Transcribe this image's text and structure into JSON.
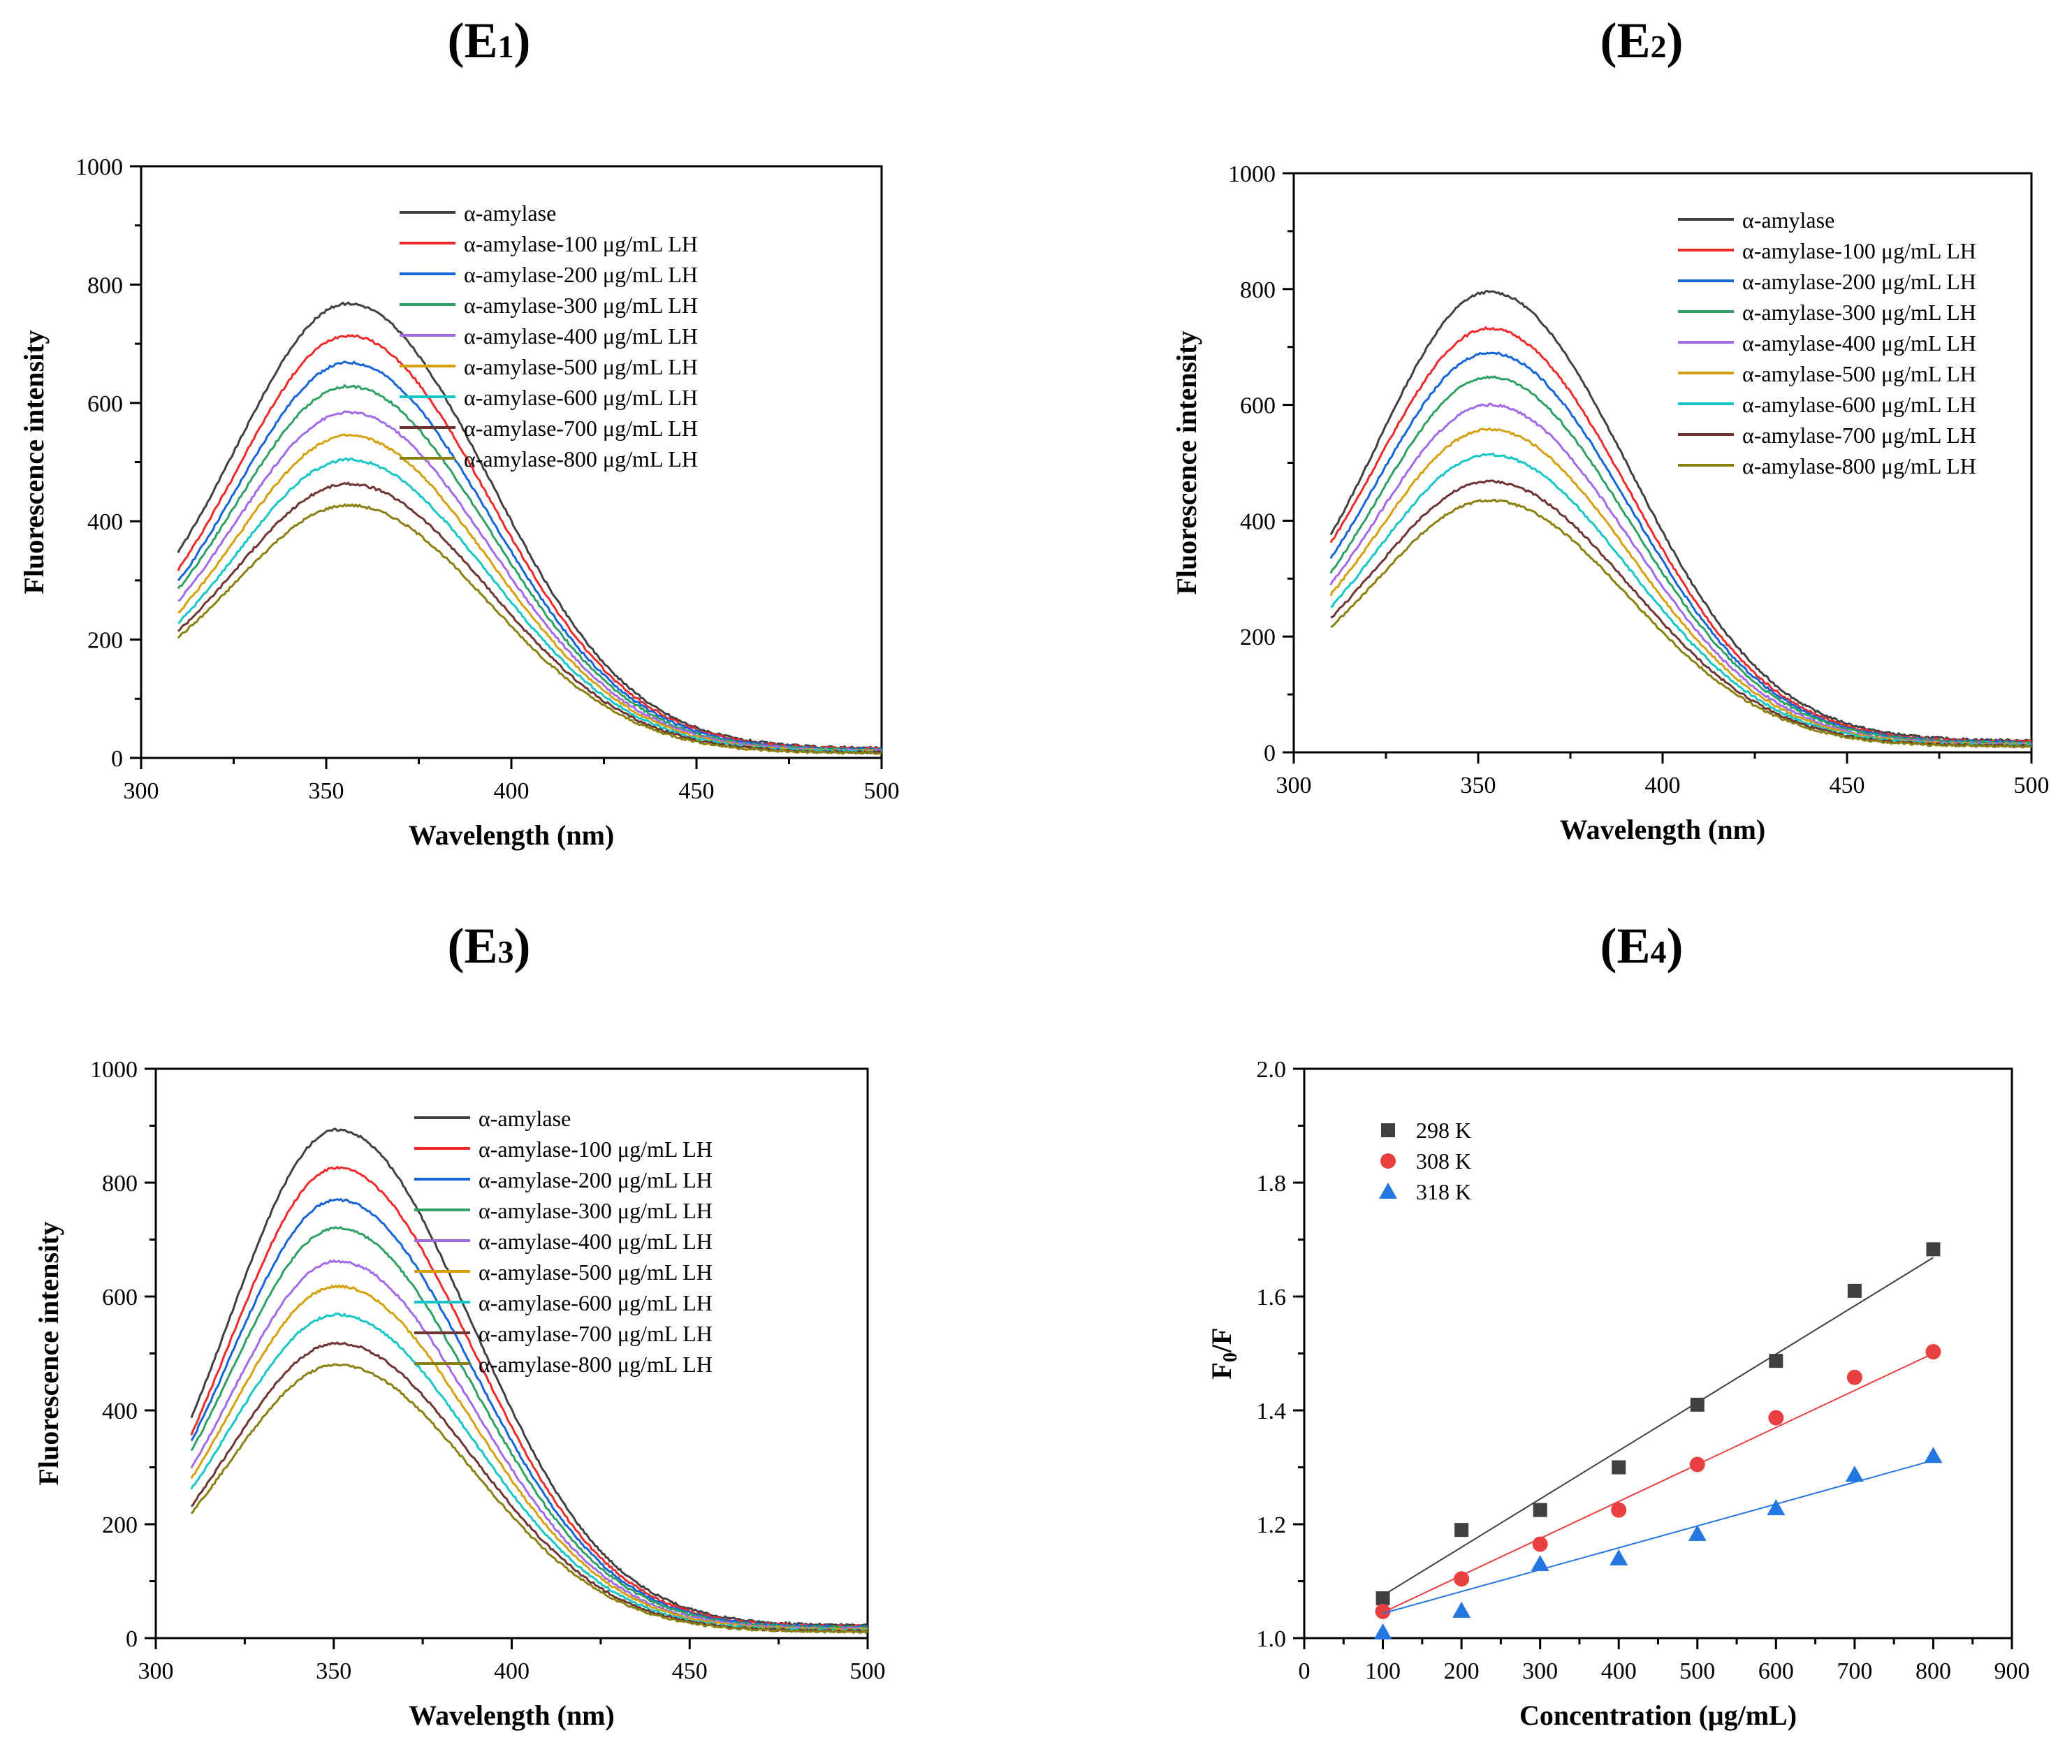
{
  "colors": {
    "series": [
      "#404040",
      "#ee2a2a",
      "#1565d8",
      "#2ea063",
      "#a26ae6",
      "#d4a00c",
      "#16c6c6",
      "#6e3434",
      "#8a8010"
    ],
    "scatter": [
      "#404040",
      "#e84040",
      "#2477e0"
    ]
  },
  "chart_data": [
    {
      "id": "E1",
      "title_main": "(E",
      "title_sub": "1",
      "title_end": ")",
      "type": "line",
      "xlabel": "Wavelength (nm)",
      "ylabel": "Fluorescence intensity",
      "xlim": [
        300,
        500
      ],
      "ylim": [
        0,
        1000
      ],
      "xticks": [
        300,
        350,
        400,
        450,
        500
      ],
      "yticks": [
        0,
        200,
        400,
        600,
        800,
        1000
      ],
      "peak_x": 356,
      "x_start": 310,
      "series": [
        {
          "name": "α-amylase",
          "peak": 768,
          "start": 348,
          "end": 16
        },
        {
          "name": "α-amylase-100 μg/mL LH",
          "peak": 714,
          "start": 318,
          "end": 15
        },
        {
          "name": "α-amylase-200 μg/mL LH",
          "peak": 668,
          "start": 298,
          "end": 14
        },
        {
          "name": "α-amylase-300 μg/mL LH",
          "peak": 628,
          "start": 285,
          "end": 13
        },
        {
          "name": "α-amylase-400 μg/mL LH",
          "peak": 584,
          "start": 265,
          "end": 12
        },
        {
          "name": "α-amylase-500 μg/mL LH",
          "peak": 545,
          "start": 245,
          "end": 11
        },
        {
          "name": "α-amylase-600 μg/mL LH",
          "peak": 504,
          "start": 228,
          "end": 10
        },
        {
          "name": "α-amylase-700 μg/mL LH",
          "peak": 463,
          "start": 215,
          "end": 9
        },
        {
          "name": "α-amylase-800 μg/mL LH",
          "peak": 427,
          "start": 204,
          "end": 8
        }
      ]
    },
    {
      "id": "E2",
      "title_main": "(E",
      "title_sub": "2",
      "title_end": ")",
      "type": "line",
      "xlabel": "Wavelength (nm)",
      "ylabel": "Fluorescence intensity",
      "xlim": [
        300,
        500
      ],
      "ylim": [
        0,
        1000
      ],
      "xticks": [
        300,
        350,
        400,
        450,
        500
      ],
      "yticks": [
        0,
        200,
        400,
        600,
        800,
        1000
      ],
      "peak_x": 353,
      "x_start": 310,
      "series": [
        {
          "name": "α-amylase",
          "peak": 795,
          "start": 375,
          "end": 20
        },
        {
          "name": "α-amylase-100 μg/mL LH",
          "peak": 732,
          "start": 362,
          "end": 18
        },
        {
          "name": "α-amylase-200 μg/mL LH",
          "peak": 690,
          "start": 335,
          "end": 17
        },
        {
          "name": "α-amylase-300 μg/mL LH",
          "peak": 648,
          "start": 310,
          "end": 16
        },
        {
          "name": "α-amylase-400 μg/mL LH",
          "peak": 600,
          "start": 290,
          "end": 14
        },
        {
          "name": "α-amylase-500 μg/mL LH",
          "peak": 558,
          "start": 272,
          "end": 13
        },
        {
          "name": "α-amylase-600 μg/mL LH",
          "peak": 514,
          "start": 250,
          "end": 12
        },
        {
          "name": "α-amylase-700 μg/mL LH",
          "peak": 468,
          "start": 232,
          "end": 11
        },
        {
          "name": "α-amylase-800 μg/mL LH",
          "peak": 435,
          "start": 216,
          "end": 10
        }
      ]
    },
    {
      "id": "E3",
      "title_main": "(E",
      "title_sub": "3",
      "title_end": ")",
      "type": "line",
      "xlabel": "Wavelength (nm)",
      "ylabel": "Fluorescence intensity",
      "xlim": [
        300,
        500
      ],
      "ylim": [
        0,
        1000
      ],
      "xticks": [
        300,
        350,
        400,
        450,
        500
      ],
      "yticks": [
        0,
        200,
        400,
        600,
        800,
        1000
      ],
      "peak_x": 351,
      "x_start": 310,
      "series": [
        {
          "name": "α-amylase",
          "peak": 893,
          "start": 388,
          "end": 22
        },
        {
          "name": "α-amylase-100 μg/mL LH",
          "peak": 826,
          "start": 358,
          "end": 20
        },
        {
          "name": "α-amylase-200 μg/mL LH",
          "peak": 770,
          "start": 345,
          "end": 19
        },
        {
          "name": "α-amylase-300 μg/mL LH",
          "peak": 720,
          "start": 328,
          "end": 18
        },
        {
          "name": "α-amylase-400 μg/mL LH",
          "peak": 662,
          "start": 298,
          "end": 16
        },
        {
          "name": "α-amylase-500 μg/mL LH",
          "peak": 618,
          "start": 280,
          "end": 15
        },
        {
          "name": "α-amylase-600 μg/mL LH",
          "peak": 568,
          "start": 262,
          "end": 13
        },
        {
          "name": "α-amylase-700 μg/mL LH",
          "peak": 518,
          "start": 232,
          "end": 12
        },
        {
          "name": "α-amylase-800 μg/mL LH",
          "peak": 480,
          "start": 220,
          "end": 11
        }
      ]
    },
    {
      "id": "E4",
      "title_main": "(E",
      "title_sub": "4",
      "title_end": ")",
      "type": "scatter",
      "xlabel": "Concentration (μg/mL)",
      "ylabel_main": "F",
      "ylabel_sub": "0",
      "ylabel_end": "/F",
      "xlim": [
        0,
        900
      ],
      "ylim": [
        1.0,
        2.0
      ],
      "xticks": [
        0,
        100,
        200,
        300,
        400,
        500,
        600,
        700,
        800,
        900
      ],
      "yticks": [
        1.0,
        1.2,
        1.4,
        1.6,
        1.8,
        2.0
      ],
      "ytick_labels": [
        "1.0",
        "1.2",
        "1.4",
        "1.6",
        "1.8",
        "2.0"
      ],
      "x": [
        100,
        200,
        300,
        400,
        500,
        600,
        700,
        800
      ],
      "series": [
        {
          "name": "298 K",
          "marker": "square",
          "values": [
            1.07,
            1.19,
            1.225,
            1.3,
            1.41,
            1.487,
            1.61,
            1.683
          ],
          "fit": [
            0.99,
            0.000848
          ]
        },
        {
          "name": "308 K",
          "marker": "circle",
          "values": [
            1.047,
            1.104,
            1.165,
            1.225,
            1.305,
            1.387,
            1.458,
            1.503
          ],
          "fit": [
            0.98,
            0.00065
          ]
        },
        {
          "name": "318 K",
          "marker": "triangle",
          "values": [
            1.01,
            1.048,
            1.13,
            1.14,
            1.183,
            1.228,
            1.287,
            1.32
          ],
          "fit": [
            1.005,
            0.000384
          ]
        }
      ]
    }
  ]
}
